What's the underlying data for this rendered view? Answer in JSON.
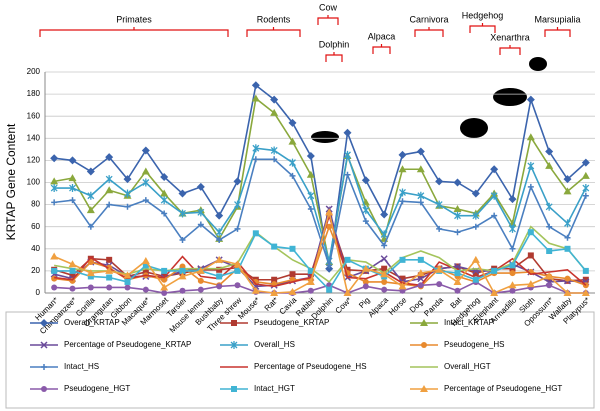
{
  "chart_data": {
    "type": "line",
    "y_label": "KRTAP Gene Content",
    "categories": [
      "Human*",
      "Chimpanzee*",
      "Gorilla",
      "Orangutan",
      "Gibbon",
      "Macaque*",
      "Marmoset",
      "Tarsier",
      "Mouse lemur",
      "Bushbaby",
      "Three shrew",
      "Mouse*",
      "Rat*",
      "Cavia",
      "Rabbit",
      "Dolphin",
      "Cow*",
      "Pig",
      "Alpaca",
      "Horse",
      "Dog*",
      "Panda",
      "Bat",
      "Hedgehog",
      "Elephant",
      "Armadillo",
      "Sloth",
      "Opossum*",
      "Wallaby",
      "Platypus*"
    ],
    "ylim": [
      0,
      200
    ],
    "yticks": [
      0,
      20,
      40,
      60,
      80,
      100,
      120,
      140,
      160,
      180,
      200
    ],
    "grid": true,
    "annotations": [
      "Primates",
      "Rodents",
      "Cow",
      "Dolphin",
      "Alpaca",
      "Carnivora",
      "Hedgehog",
      "Xenarthra",
      "Marsupialia"
    ],
    "series": [
      {
        "name": "Overall_KRTAP",
        "color": "#3b64ad",
        "marker": "diamond",
        "values": [
          122,
          120,
          110,
          123,
          103,
          129,
          105,
          90,
          96,
          70,
          101,
          188,
          175,
          154,
          124,
          22,
          145,
          102,
          71,
          125,
          128,
          101,
          100,
          90,
          112,
          85,
          175,
          128,
          103,
          118
        ]
      },
      {
        "name": "Pseudogene_KRTAP",
        "color": "#b03a30",
        "marker": "square",
        "values": [
          21,
          16,
          31,
          30,
          15,
          19,
          15,
          18,
          21,
          21,
          23,
          12,
          12,
          17,
          17,
          70,
          21,
          20,
          22,
          13,
          16,
          22,
          24,
          18,
          22,
          22,
          34,
          13,
          11,
          12
        ]
      },
      {
        "name": "Intact_KRTAP",
        "color": "#8aa83c",
        "marker": "triangle",
        "values": [
          101,
          104,
          75,
          93,
          88,
          110,
          90,
          72,
          75,
          49,
          78,
          176,
          163,
          137,
          107,
          28,
          124,
          82,
          49,
          112,
          112,
          79,
          76,
          72,
          90,
          63,
          141,
          115,
          92,
          106
        ]
      },
      {
        "name": "Percentage of Pseudogene_KRTAP",
        "color": "#6a4a9a",
        "marker": "x",
        "values": [
          17,
          13,
          28,
          25,
          15,
          15,
          14,
          20,
          22,
          30,
          23,
          6,
          7,
          11,
          14,
          76,
          14,
          20,
          31,
          10,
          13,
          22,
          24,
          20,
          20,
          26,
          19,
          10,
          11,
          10
        ]
      },
      {
        "name": "Overall_HS",
        "color": "#3aa0c8",
        "marker": "star",
        "values": [
          95,
          95,
          88,
          103,
          90,
          100,
          84,
          72,
          73,
          55,
          80,
          131,
          129,
          118,
          88,
          29,
          125,
          75,
          53,
          91,
          88,
          80,
          70,
          70,
          88,
          58,
          115,
          78,
          63,
          95
        ]
      },
      {
        "name": "Pseudogene_HS",
        "color": "#e88a2e",
        "marker": "circle",
        "values": [
          13,
          11,
          28,
          23,
          12,
          16,
          12,
          24,
          11,
          7,
          22,
          10,
          8,
          12,
          12,
          60,
          18,
          10,
          10,
          8,
          6,
          22,
          15,
          10,
          18,
          18,
          19,
          15,
          13,
          7
        ]
      },
      {
        "name": "Intact_HS",
        "color": "#4a7fc0",
        "marker": "plus",
        "values": [
          82,
          84,
          60,
          80,
          78,
          84,
          72,
          48,
          62,
          48,
          58,
          121,
          121,
          106,
          76,
          25,
          107,
          65,
          43,
          83,
          82,
          58,
          55,
          60,
          70,
          40,
          96,
          60,
          50,
          88
        ]
      },
      {
        "name": "Percentage of Pseudogene_HS",
        "color": "#c8342e",
        "marker": "none",
        "values": [
          14,
          12,
          32,
          22,
          13,
          16,
          14,
          33,
          15,
          13,
          28,
          8,
          6,
          10,
          14,
          70,
          14,
          13,
          19,
          9,
          7,
          28,
          21,
          14,
          20,
          31,
          17,
          19,
          21,
          7
        ]
      },
      {
        "name": "Overall_HGT",
        "color": "#a4c45c",
        "marker": "none",
        "values": [
          25,
          22,
          20,
          20,
          17,
          22,
          20,
          22,
          22,
          22,
          27,
          55,
          42,
          30,
          22,
          10,
          30,
          28,
          18,
          32,
          38,
          32,
          20,
          22,
          20,
          27,
          60,
          45,
          40,
          20
        ]
      },
      {
        "name": "Pseudogene_HGT",
        "color": "#8a5aaa",
        "marker": "circle",
        "values": [
          5,
          4,
          5,
          5,
          5,
          3,
          0,
          2,
          3,
          6,
          7,
          1,
          0,
          0,
          2,
          7,
          0,
          6,
          3,
          2,
          7,
          8,
          2,
          10,
          0,
          2,
          5,
          7,
          0,
          0
        ]
      },
      {
        "name": "Intact_HGT",
        "color": "#40b4d4",
        "marker": "square",
        "values": [
          20,
          20,
          15,
          14,
          10,
          25,
          20,
          20,
          20,
          15,
          20,
          54,
          42,
          40,
          20,
          3,
          30,
          22,
          15,
          30,
          30,
          20,
          18,
          12,
          20,
          25,
          55,
          38,
          40,
          20
        ]
      },
      {
        "name": "Percentage of Pseudogene_HGT",
        "color": "#f0a040",
        "marker": "triangle",
        "values": [
          33,
          26,
          18,
          20,
          16,
          29,
          5,
          15,
          20,
          30,
          26,
          2,
          0,
          1,
          10,
          73,
          0,
          22,
          17,
          6,
          18,
          21,
          10,
          30,
          0,
          7,
          8,
          15,
          0,
          0
        ]
      }
    ]
  }
}
